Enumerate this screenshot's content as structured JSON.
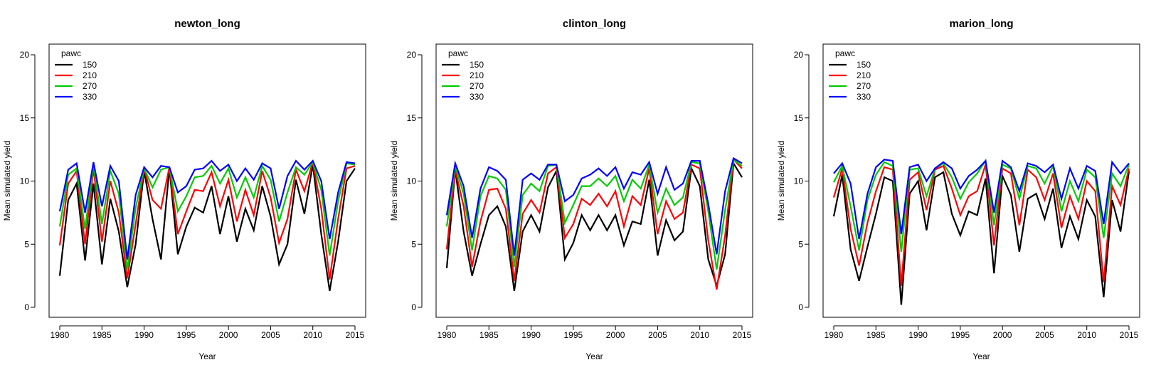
{
  "chart_data": [
    {
      "type": "line",
      "title": "newton_long",
      "xlabel": "Year",
      "ylabel": "Mean simulated yield",
      "xlim": [
        1980,
        2015
      ],
      "ylim": [
        0,
        20
      ],
      "xticks": [
        1980,
        1985,
        1990,
        1995,
        2000,
        2005,
        2010,
        2015
      ],
      "yticks": [
        0,
        5,
        10,
        15,
        20
      ],
      "legend_title": "pawc",
      "legend_position": "top-left",
      "x": [
        1980,
        1981,
        1982,
        1983,
        1984,
        1985,
        1986,
        1987,
        1988,
        1989,
        1990,
        1991,
        1992,
        1993,
        1994,
        1995,
        1996,
        1997,
        1998,
        1999,
        2000,
        2001,
        2002,
        2003,
        2004,
        2005,
        2006,
        2007,
        2008,
        2009,
        2010,
        2011,
        2012,
        2013,
        2014,
        2015
      ],
      "series": [
        {
          "name": "150",
          "color": "#000000",
          "values": [
            2.5,
            8.5,
            9.8,
            3.7,
            9.8,
            3.4,
            8.6,
            6.0,
            1.6,
            5.0,
            10.8,
            7.0,
            3.8,
            11.0,
            4.2,
            6.4,
            7.9,
            7.5,
            9.6,
            5.8,
            8.8,
            5.2,
            7.8,
            6.1,
            9.6,
            7.2,
            3.4,
            5.0,
            10.1,
            7.4,
            11.3,
            5.8,
            1.3,
            5.2,
            10.0,
            11.0
          ]
        },
        {
          "name": "210",
          "color": "#ff0000",
          "values": [
            4.9,
            9.8,
            10.8,
            5.0,
            11.0,
            5.2,
            10.0,
            7.5,
            2.3,
            6.6,
            11.0,
            8.5,
            7.8,
            11.1,
            5.8,
            7.6,
            9.3,
            9.2,
            10.7,
            8.0,
            10.1,
            6.8,
            9.3,
            7.3,
            10.8,
            8.7,
            5.1,
            7.0,
            10.9,
            9.2,
            11.5,
            7.8,
            2.2,
            7.0,
            11.0,
            11.2
          ]
        },
        {
          "name": "270",
          "color": "#00cc00",
          "values": [
            6.4,
            10.5,
            11.0,
            6.2,
            11.3,
            6.6,
            10.8,
            9.0,
            3.0,
            7.9,
            11.0,
            9.5,
            10.9,
            11.1,
            7.6,
            8.8,
            10.3,
            10.4,
            11.2,
            9.8,
            11.0,
            8.7,
            10.3,
            8.7,
            11.2,
            10.1,
            6.8,
            9.1,
            11.1,
            10.5,
            11.5,
            9.3,
            4.1,
            8.4,
            11.4,
            11.3
          ]
        },
        {
          "name": "330",
          "color": "#0000ff",
          "values": [
            7.6,
            10.9,
            11.4,
            7.5,
            11.5,
            8.0,
            11.2,
            10.0,
            3.8,
            8.9,
            11.1,
            10.3,
            11.2,
            11.1,
            9.1,
            9.6,
            10.9,
            11.0,
            11.6,
            10.8,
            11.3,
            10.0,
            11.0,
            10.1,
            11.4,
            11.0,
            7.8,
            10.4,
            11.6,
            10.9,
            11.6,
            10.0,
            5.4,
            9.1,
            11.5,
            11.4
          ]
        }
      ]
    },
    {
      "type": "line",
      "title": "clinton_long",
      "xlabel": "Year",
      "ylabel": "Mean simulated yield",
      "xlim": [
        1980,
        2015
      ],
      "ylim": [
        0,
        20
      ],
      "xticks": [
        1980,
        1985,
        1990,
        1995,
        2000,
        2005,
        2010,
        2015
      ],
      "yticks": [
        0,
        5,
        10,
        15,
        20
      ],
      "legend_title": "pawc",
      "legend_position": "top-left",
      "x": [
        1980,
        1981,
        1982,
        1983,
        1984,
        1985,
        1986,
        1987,
        1988,
        1989,
        1990,
        1991,
        1992,
        1993,
        1994,
        1995,
        1996,
        1997,
        1998,
        1999,
        2000,
        2001,
        2002,
        2003,
        2004,
        2005,
        2006,
        2007,
        2008,
        2009,
        2010,
        2011,
        2012,
        2013,
        2014,
        2015
      ],
      "series": [
        {
          "name": "150",
          "color": "#000000",
          "values": [
            3.1,
            10.9,
            6.0,
            2.5,
            5.0,
            7.3,
            8.0,
            6.4,
            1.3,
            6.0,
            7.3,
            6.0,
            9.5,
            10.8,
            3.8,
            5.1,
            7.3,
            6.1,
            7.3,
            6.1,
            7.3,
            4.9,
            6.8,
            6.6,
            10.1,
            4.1,
            6.9,
            5.3,
            6.0,
            11.0,
            9.6,
            3.8,
            1.7,
            4.2,
            11.4,
            10.3
          ]
        },
        {
          "name": "210",
          "color": "#ff0000",
          "values": [
            4.6,
            10.9,
            8.0,
            3.2,
            6.8,
            9.3,
            9.4,
            7.8,
            2.1,
            7.4,
            8.5,
            7.5,
            10.6,
            11.1,
            5.5,
            6.6,
            8.6,
            8.1,
            9.0,
            8.0,
            9.2,
            6.4,
            8.8,
            8.1,
            11.0,
            5.8,
            8.4,
            7.0,
            7.5,
            11.3,
            11.0,
            5.3,
            1.4,
            5.7,
            11.7,
            11.0
          ]
        },
        {
          "name": "270",
          "color": "#00cc00",
          "values": [
            6.4,
            11.2,
            9.0,
            4.5,
            8.8,
            10.4,
            10.2,
            9.3,
            3.2,
            8.9,
            9.8,
            9.2,
            11.2,
            11.3,
            6.7,
            8.1,
            9.6,
            9.6,
            10.2,
            9.6,
            10.4,
            8.4,
            10.1,
            9.4,
            11.3,
            7.5,
            9.4,
            8.1,
            8.7,
            11.5,
            11.4,
            7.6,
            3.0,
            7.7,
            11.7,
            11.2
          ]
        },
        {
          "name": "330",
          "color": "#0000ff",
          "values": [
            7.3,
            11.4,
            9.6,
            5.5,
            9.4,
            11.1,
            10.8,
            10.1,
            4.1,
            10.1,
            10.6,
            10.1,
            11.3,
            11.3,
            8.4,
            8.9,
            10.2,
            10.5,
            11.0,
            10.4,
            11.1,
            9.4,
            10.7,
            10.5,
            11.5,
            9.0,
            11.1,
            9.3,
            9.8,
            11.6,
            11.6,
            8.2,
            4.2,
            9.2,
            11.8,
            11.4
          ]
        }
      ]
    },
    {
      "type": "line",
      "title": "marion_long",
      "xlabel": "Year",
      "ylabel": "Mean simulated yield",
      "xlim": [
        1980,
        2015
      ],
      "ylim": [
        0,
        20
      ],
      "xticks": [
        1980,
        1985,
        1990,
        1995,
        2000,
        2005,
        2010,
        2015
      ],
      "yticks": [
        0,
        5,
        10,
        15,
        20
      ],
      "legend_title": "pawc",
      "legend_position": "top-left",
      "x": [
        1980,
        1981,
        1982,
        1983,
        1984,
        1985,
        1986,
        1987,
        1988,
        1989,
        1990,
        1991,
        1992,
        1993,
        1994,
        1995,
        1996,
        1997,
        1998,
        1999,
        2000,
        2001,
        2002,
        2003,
        2004,
        2005,
        2006,
        2007,
        2008,
        2009,
        2010,
        2011,
        2012,
        2013,
        2014,
        2015
      ],
      "series": [
        {
          "name": "150",
          "color": "#000000",
          "values": [
            7.2,
            10.5,
            4.6,
            2.1,
            4.8,
            7.4,
            10.3,
            10.0,
            0.2,
            9.0,
            10.0,
            6.1,
            10.3,
            10.7,
            7.4,
            5.7,
            7.6,
            7.3,
            10.2,
            2.7,
            10.4,
            8.9,
            4.4,
            8.6,
            9.0,
            7.0,
            9.4,
            4.7,
            7.2,
            5.4,
            8.5,
            7.2,
            0.8,
            8.5,
            6.0,
            10.8
          ]
        },
        {
          "name": "210",
          "color": "#ff0000",
          "values": [
            8.7,
            11.0,
            6.2,
            3.3,
            6.7,
            9.2,
            11.1,
            10.9,
            1.7,
            10.1,
            10.7,
            7.7,
            10.9,
            11.2,
            9.4,
            7.3,
            8.8,
            9.2,
            11.3,
            4.9,
            11.0,
            10.6,
            6.5,
            10.9,
            10.3,
            8.5,
            10.6,
            6.3,
            8.8,
            7.0,
            10.0,
            9.2,
            2.0,
            9.6,
            8.1,
            11.0
          ]
        },
        {
          "name": "270",
          "color": "#00cc00",
          "values": [
            9.9,
            11.2,
            8.0,
            4.5,
            8.5,
            10.5,
            11.5,
            11.2,
            4.4,
            10.9,
            11.0,
            8.8,
            11.0,
            11.4,
            10.3,
            8.6,
            9.9,
            10.6,
            11.6,
            6.5,
            11.3,
            11.0,
            8.6,
            11.2,
            11.0,
            9.8,
            11.2,
            7.6,
            10.0,
            8.4,
            10.9,
            10.3,
            5.5,
            10.6,
            9.6,
            11.3
          ]
        },
        {
          "name": "330",
          "color": "#0000ff",
          "values": [
            10.6,
            11.4,
            9.8,
            5.4,
            9.0,
            11.1,
            11.7,
            11.6,
            5.8,
            11.1,
            11.3,
            10.0,
            11.0,
            11.5,
            11.0,
            9.4,
            10.4,
            10.9,
            11.6,
            7.5,
            11.6,
            11.1,
            9.2,
            11.4,
            11.2,
            10.7,
            11.3,
            8.6,
            11.0,
            9.4,
            11.2,
            10.8,
            6.6,
            11.5,
            10.6,
            11.4
          ]
        }
      ]
    }
  ]
}
